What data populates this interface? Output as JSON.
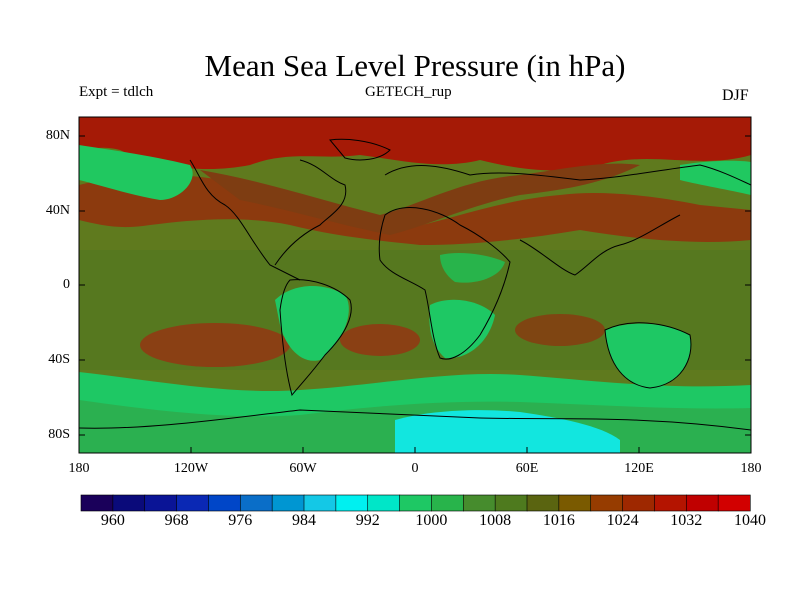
{
  "header": {
    "title": "Mean Sea Level Pressure (in hPa)",
    "experiment": "Expt = tdlch",
    "run": "GETECH_rup",
    "season": "DJF"
  },
  "map": {
    "projection": "cylindrical equidistant",
    "lat_range": [
      -90,
      90
    ],
    "lon_range": [
      -180,
      180
    ],
    "lat_ticks": [
      "80N",
      "40N",
      "0",
      "40S",
      "80S"
    ],
    "lon_ticks": [
      "180",
      "120W",
      "60W",
      "0",
      "60E",
      "120E",
      "180"
    ]
  },
  "colorbar": {
    "units": "hPa",
    "labels": [
      "960",
      "968",
      "976",
      "984",
      "992",
      "1000",
      "1008",
      "1016",
      "1024",
      "1032",
      "1040"
    ],
    "colors": [
      "#1a005a",
      "#0a0a7a",
      "#0a1496",
      "#0a28b4",
      "#0046c8",
      "#0a6ec8",
      "#0096d2",
      "#14c8e6",
      "#00f0f0",
      "#00e6c8",
      "#1ec864",
      "#28b44b",
      "#468c2d",
      "#4e7a1e",
      "#5a6410",
      "#7a5a00",
      "#963c00",
      "#9e2800",
      "#b41400",
      "#c00000",
      "#d20000"
    ]
  },
  "colors": {
    "background": "#6a7f1c",
    "ocean_mid": "#4b7d26",
    "high_north": "#a61a06",
    "high_subtropic": "#8a3b10",
    "land_low": "#1ec864",
    "antarctic_low": "#11e6e0",
    "coastline": "#000000"
  }
}
